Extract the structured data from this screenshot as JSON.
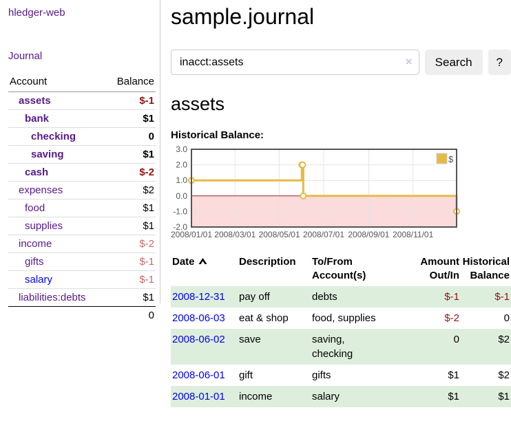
{
  "app": {
    "brand": "hledger-web"
  },
  "sidebar": {
    "nav_journal": "Journal",
    "accounts": {
      "col_account": "Account",
      "col_balance": "Balance",
      "rows": [
        {
          "label": "assets",
          "indent": 1,
          "bold": true,
          "link": "purple",
          "balance": "$-1",
          "balance_class": "neg"
        },
        {
          "label": "bank",
          "indent": 2,
          "bold": true,
          "link": "purple",
          "balance": "$1",
          "balance_class": ""
        },
        {
          "label": "checking",
          "indent": 3,
          "bold": true,
          "link": "purple",
          "balance": "0",
          "balance_class": ""
        },
        {
          "label": "saving",
          "indent": 3,
          "bold": true,
          "link": "purple",
          "balance": "$1",
          "balance_class": ""
        },
        {
          "label": "cash",
          "indent": 2,
          "bold": true,
          "link": "purple",
          "balance": "$-2",
          "balance_class": "neg"
        },
        {
          "label": "expenses",
          "indent": 1,
          "bold": false,
          "link": "purple",
          "balance": "$2",
          "balance_class": ""
        },
        {
          "label": "food",
          "indent": 2,
          "bold": false,
          "link": "purple",
          "balance": "$1",
          "balance_class": ""
        },
        {
          "label": "supplies",
          "indent": 2,
          "bold": false,
          "link": "purple",
          "balance": "$1",
          "balance_class": ""
        },
        {
          "label": "income",
          "indent": 1,
          "bold": false,
          "link": "purple",
          "balance": "$-2",
          "balance_class": "neg-soft"
        },
        {
          "label": "gifts",
          "indent": 2,
          "bold": false,
          "link": "purple",
          "balance": "$-1",
          "balance_class": "neg-soft"
        },
        {
          "label": "salary",
          "indent": 2,
          "bold": false,
          "link": "blue",
          "balance": "$-1",
          "balance_class": "neg-soft"
        },
        {
          "label": "liabilities:debts",
          "indent": 1,
          "bold": false,
          "link": "purple",
          "balance": "$1",
          "balance_class": ""
        }
      ],
      "total": "0"
    }
  },
  "main": {
    "title": "sample.journal",
    "search": {
      "value": "inacct:assets",
      "clear": "×",
      "search_button": "Search",
      "help_button": "?"
    },
    "account_title": "assets",
    "chart_heading": "Historical Balance:"
  },
  "chart_data": {
    "type": "line",
    "title": "Historical Balance:",
    "step": true,
    "x_range": [
      "2008-01-01",
      "2008-12-31"
    ],
    "ylim": [
      -2,
      3
    ],
    "yticks": [
      {
        "v": 3,
        "label": "3.0"
      },
      {
        "v": 2,
        "label": "2.0"
      },
      {
        "v": 1,
        "label": "1.0"
      },
      {
        "v": 0,
        "label": "0.0"
      },
      {
        "v": -1,
        "label": "-1.0"
      },
      {
        "v": -2,
        "label": "-2.0"
      }
    ],
    "xticks": [
      {
        "date": "2008-01-01",
        "label": "2008/01/01"
      },
      {
        "date": "2008-03-01",
        "label": "2008/03/01"
      },
      {
        "date": "2008-05-01",
        "label": "2008/05/01"
      },
      {
        "date": "2008-07-01",
        "label": "2008/07/01"
      },
      {
        "date": "2008-09-01",
        "label": "2008/09/01"
      },
      {
        "date": "2008-11-01",
        "label": "2008/11/01"
      }
    ],
    "series": [
      {
        "name": "$",
        "color": "#e6bb45",
        "points": [
          {
            "date": "2008-01-01",
            "y": 1
          },
          {
            "date": "2008-06-01",
            "y": 2
          },
          {
            "date": "2008-06-02",
            "y": 2
          },
          {
            "date": "2008-06-03",
            "y": 0
          },
          {
            "date": "2008-12-31",
            "y": -1
          }
        ]
      }
    ],
    "legend": {
      "label": "$",
      "swatch_color": "#e6bb45",
      "position": "top-right"
    },
    "grid": true,
    "negative_region_fill": "#fbdbdb",
    "zero_line_color": "#992222",
    "plot_border_color": "#545454",
    "tick_label_color": "#545454"
  },
  "register": {
    "columns": [
      {
        "key": "date",
        "lines": [
          "Date"
        ],
        "sorted": "asc",
        "sortable": true
      },
      {
        "key": "description",
        "lines": [
          "Description"
        ]
      },
      {
        "key": "accounts",
        "lines": [
          "To/From",
          "Account(s)"
        ]
      },
      {
        "key": "amount",
        "lines": [
          "Amount",
          "Out/In"
        ]
      },
      {
        "key": "balance",
        "lines": [
          "Historical",
          "Balance"
        ]
      }
    ],
    "rows": [
      {
        "date": "2008-12-31",
        "description": "pay off",
        "accounts_lines": [
          "debts"
        ],
        "amount": "$-1",
        "amount_class": "neg",
        "balance": "$-1",
        "balance_class": "neg"
      },
      {
        "date": "2008-06-03",
        "description": "eat & shop",
        "accounts_lines": [
          "food, supplies"
        ],
        "amount": "$-2",
        "amount_class": "neg",
        "balance": "0",
        "balance_class": ""
      },
      {
        "date": "2008-06-02",
        "description": "save",
        "accounts_lines": [
          "saving,",
          "checking"
        ],
        "amount": "0",
        "amount_class": "",
        "balance": "$2",
        "balance_class": ""
      },
      {
        "date": "2008-06-01",
        "description": "gift",
        "accounts_lines": [
          "gifts"
        ],
        "amount": "$1",
        "amount_class": "",
        "balance": "$2",
        "balance_class": ""
      },
      {
        "date": "2008-01-01",
        "description": "income",
        "accounts_lines": [
          "salary"
        ],
        "amount": "$1",
        "amount_class": "",
        "balance": "$1",
        "balance_class": ""
      }
    ]
  }
}
